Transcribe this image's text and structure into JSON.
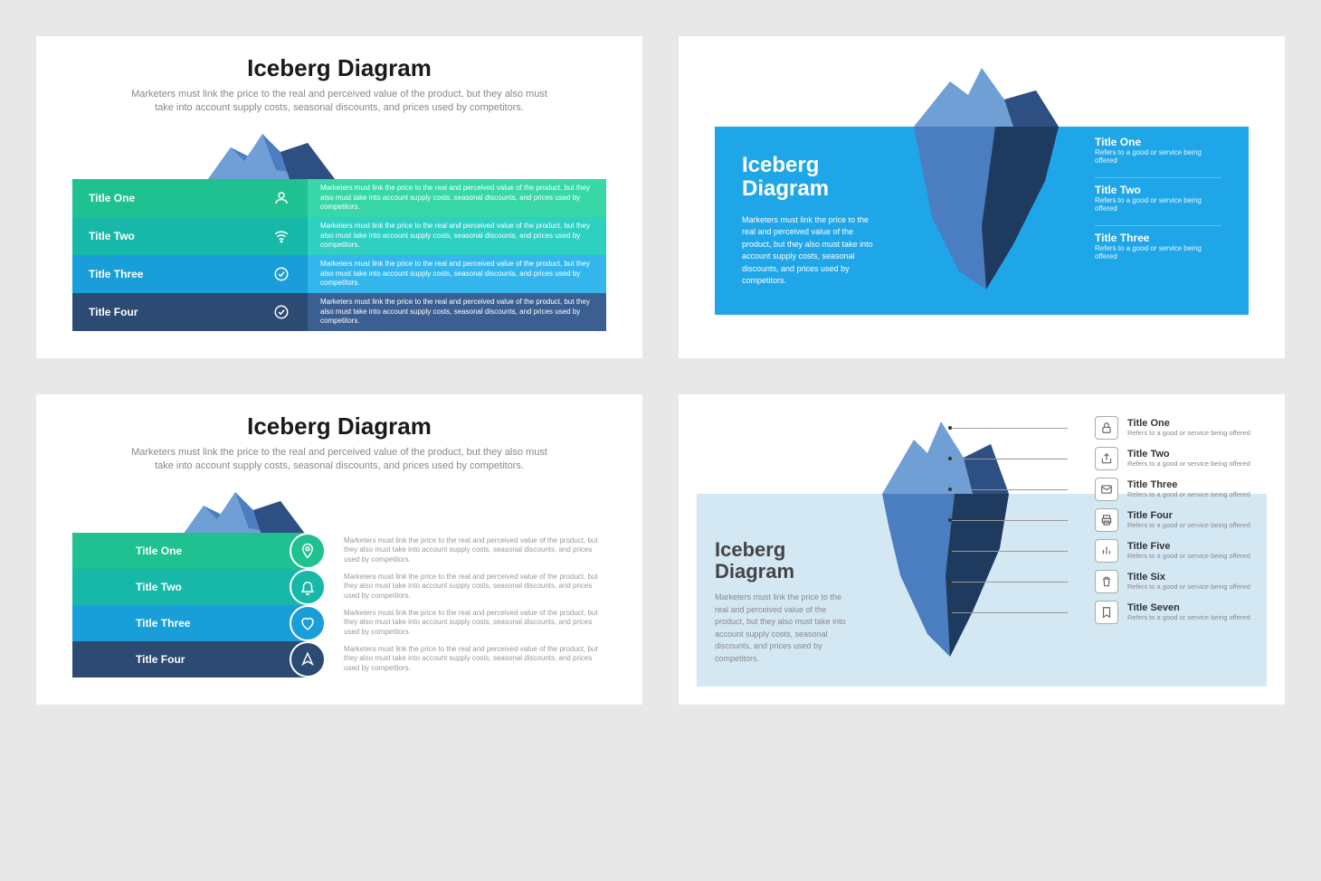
{
  "page_bg": "#e8e8e8",
  "common": {
    "desc_long": "Marketers must link the price to the real and perceived value of the product, but they also must take into account supply costs, seasonal discounts, and prices used by competitors.",
    "desc_short": "Refers to a good or service being offered",
    "heading": "Iceberg Diagram"
  },
  "iceberg_colors": {
    "light": "#6f9fd4",
    "mid": "#4b7ec0",
    "dark": "#2d4f82",
    "darkest": "#1f3a5f"
  },
  "slide1": {
    "title": "Iceberg Diagram",
    "subtitle": "Marketers must link the price to the real and perceived value of the product, but they also must take into account supply costs, seasonal discounts, and prices used by competitors.",
    "rows": [
      {
        "label": "Title One",
        "bg_left": "#1fc191",
        "bg_right": "#38d7a8",
        "desc_color": "#ffffff",
        "icon": "user"
      },
      {
        "label": "Title Two",
        "bg_left": "#17b8a8",
        "bg_right": "#2fcfc1",
        "desc_color": "#ffffff",
        "icon": "wifi"
      },
      {
        "label": "Title Three",
        "bg_left": "#1a9ed9",
        "bg_right": "#34b6ec",
        "desc_color": "#ffffff",
        "icon": "check"
      },
      {
        "label": "Title Four",
        "bg_left": "#2d4a73",
        "bg_right": "#3c5f91",
        "desc_color": "#ffffff",
        "icon": "tick"
      }
    ]
  },
  "slide2": {
    "banner_bg": "#1fa6e8",
    "title": "Iceberg Diagram",
    "subtitle": "Marketers must link the price to the real and perceived value of the product, but they also must take into account supply costs, seasonal discounts, and prices used by competitors.",
    "items": [
      {
        "title": "Title One",
        "desc": "Refers to a good or service being offered"
      },
      {
        "title": "Title Two",
        "desc": "Refers to a good or service being offered"
      },
      {
        "title": "Title Three",
        "desc": "Refers to a good or service being offered"
      }
    ]
  },
  "slide3": {
    "title": "Iceberg Diagram",
    "subtitle": "Marketers must link the price to the real and perceived value of the product, but they also must take into account supply costs, seasonal discounts, and prices used by competitors.",
    "rows": [
      {
        "label": "Title One",
        "bg": "#1fc191",
        "icon": "pin"
      },
      {
        "label": "Title Two",
        "bg": "#17b8a8",
        "icon": "bell"
      },
      {
        "label": "Title Three",
        "bg": "#1a9ed9",
        "icon": "heart"
      },
      {
        "label": "Title Four",
        "bg": "#2d4a73",
        "icon": "arrow"
      }
    ],
    "desc_color": "#999999"
  },
  "slide4": {
    "title": "Iceberg Diagram",
    "subtitle": "Marketers must link the price to the real and perceived value of the product, but they also must take into account supply costs, seasonal discounts, and prices used by competitors.",
    "water_bg": "#d4e8f4",
    "items": [
      {
        "title": "Title One",
        "desc": "Refers to a good or service being offered",
        "icon": "lock"
      },
      {
        "title": "Title Two",
        "desc": "Refers to a good or service being offered",
        "icon": "share"
      },
      {
        "title": "Title Three",
        "desc": "Refers to a good or service being offered",
        "icon": "mail"
      },
      {
        "title": "Title Four",
        "desc": "Refers to a good or service being offered",
        "icon": "print"
      },
      {
        "title": "Title Five",
        "desc": "Refers to a good or service being offered",
        "icon": "bars"
      },
      {
        "title": "Title Six",
        "desc": "Refers to a good or service being offered",
        "icon": "trash"
      },
      {
        "title": "Title Seven",
        "desc": "Refers to a good or service being offered",
        "icon": "bookmark"
      }
    ]
  }
}
